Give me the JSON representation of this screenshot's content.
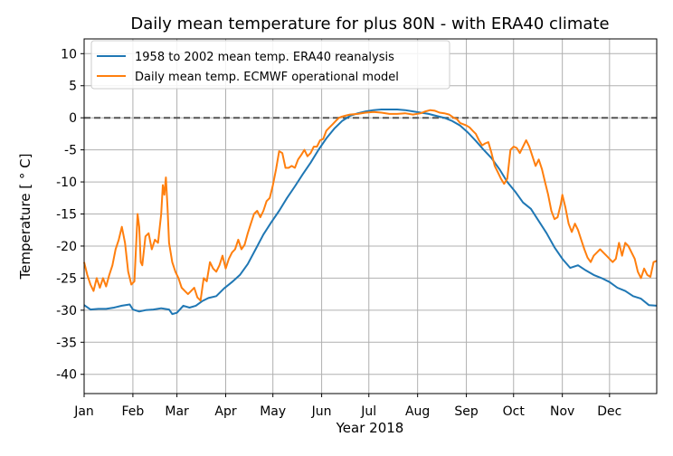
{
  "chart_data": {
    "type": "line",
    "title": "Daily mean temperature for plus 80N - with ERA40 climate",
    "xlabel": "Year 2018",
    "ylabel": "Temperature [ ° C]",
    "ylim": [
      -43,
      12.3
    ],
    "xlim": [
      1,
      365
    ],
    "x_unit": "day of year 2018",
    "yticks": [
      10,
      5,
      0,
      -5,
      -10,
      -15,
      -20,
      -25,
      -30,
      -35,
      -40
    ],
    "xticks": [
      {
        "label": "Jan",
        "day": 1
      },
      {
        "label": "Feb",
        "day": 32
      },
      {
        "label": "Mar",
        "day": 60
      },
      {
        "label": "Apr",
        "day": 91
      },
      {
        "label": "May",
        "day": 121
      },
      {
        "label": "Jun",
        "day": 152
      },
      {
        "label": "Jul",
        "day": 182
      },
      {
        "label": "Aug",
        "day": 213
      },
      {
        "label": "Sep",
        "day": 244
      },
      {
        "label": "Oct",
        "day": 274
      },
      {
        "label": "Nov",
        "day": 305
      },
      {
        "label": "Dec",
        "day": 335
      }
    ],
    "grid": true,
    "legend_position": "top-left",
    "zero_line": {
      "y": 0,
      "style": "dashed",
      "color": "#555555"
    },
    "series": [
      {
        "name": "1958 to 2002 mean temp. ERA40 reanalysis",
        "color": "#1f77b4",
        "points": [
          [
            1,
            -29.2
          ],
          [
            5,
            -29.9
          ],
          [
            10,
            -29.8
          ],
          [
            15,
            -29.8
          ],
          [
            20,
            -29.6
          ],
          [
            25,
            -29.3
          ],
          [
            30,
            -29.1
          ],
          [
            32,
            -29.9
          ],
          [
            36,
            -30.2
          ],
          [
            40,
            -30.0
          ],
          [
            45,
            -29.9
          ],
          [
            50,
            -29.7
          ],
          [
            55,
            -29.9
          ],
          [
            57,
            -30.6
          ],
          [
            60,
            -30.4
          ],
          [
            64,
            -29.3
          ],
          [
            68,
            -29.6
          ],
          [
            72,
            -29.3
          ],
          [
            76,
            -28.6
          ],
          [
            80,
            -28.1
          ],
          [
            85,
            -27.8
          ],
          [
            90,
            -26.6
          ],
          [
            95,
            -25.6
          ],
          [
            100,
            -24.5
          ],
          [
            105,
            -22.8
          ],
          [
            110,
            -20.5
          ],
          [
            115,
            -18.2
          ],
          [
            120,
            -16.3
          ],
          [
            125,
            -14.5
          ],
          [
            130,
            -12.5
          ],
          [
            135,
            -10.7
          ],
          [
            140,
            -8.8
          ],
          [
            145,
            -7.0
          ],
          [
            150,
            -5.0
          ],
          [
            155,
            -3.2
          ],
          [
            160,
            -1.7
          ],
          [
            165,
            -0.5
          ],
          [
            170,
            0.3
          ],
          [
            175,
            0.7
          ],
          [
            180,
            1.0
          ],
          [
            185,
            1.2
          ],
          [
            190,
            1.3
          ],
          [
            195,
            1.3
          ],
          [
            200,
            1.3
          ],
          [
            205,
            1.2
          ],
          [
            210,
            1.0
          ],
          [
            215,
            0.8
          ],
          [
            220,
            0.6
          ],
          [
            225,
            0.3
          ],
          [
            230,
            0.0
          ],
          [
            235,
            -0.5
          ],
          [
            240,
            -1.2
          ],
          [
            245,
            -2.3
          ],
          [
            250,
            -3.6
          ],
          [
            255,
            -5.0
          ],
          [
            260,
            -6.3
          ],
          [
            265,
            -8.0
          ],
          [
            270,
            -10.0
          ],
          [
            275,
            -11.5
          ],
          [
            280,
            -13.2
          ],
          [
            285,
            -14.2
          ],
          [
            290,
            -16.1
          ],
          [
            295,
            -18.0
          ],
          [
            300,
            -20.2
          ],
          [
            305,
            -22.0
          ],
          [
            310,
            -23.4
          ],
          [
            315,
            -23.0
          ],
          [
            320,
            -23.8
          ],
          [
            325,
            -24.5
          ],
          [
            330,
            -25.0
          ],
          [
            335,
            -25.6
          ],
          [
            340,
            -26.5
          ],
          [
            345,
            -27.0
          ],
          [
            350,
            -27.8
          ],
          [
            355,
            -28.2
          ],
          [
            360,
            -29.2
          ],
          [
            365,
            -29.3
          ]
        ]
      },
      {
        "name": "Daily mean temp. ECMWF operational model",
        "color": "#ff7f0e",
        "points": [
          [
            1,
            -22.5
          ],
          [
            3,
            -24.5
          ],
          [
            5,
            -26.0
          ],
          [
            7,
            -27.0
          ],
          [
            9,
            -25.0
          ],
          [
            11,
            -26.5
          ],
          [
            13,
            -25.0
          ],
          [
            15,
            -26.3
          ],
          [
            17,
            -24.5
          ],
          [
            19,
            -23.0
          ],
          [
            21,
            -20.5
          ],
          [
            23,
            -19.0
          ],
          [
            25,
            -17.0
          ],
          [
            27,
            -19.5
          ],
          [
            29,
            -24.0
          ],
          [
            31,
            -26.0
          ],
          [
            33,
            -25.5
          ],
          [
            35,
            -15.0
          ],
          [
            36,
            -17.0
          ],
          [
            37,
            -22.5
          ],
          [
            38,
            -23.0
          ],
          [
            40,
            -18.5
          ],
          [
            42,
            -18.0
          ],
          [
            44,
            -20.5
          ],
          [
            46,
            -19.0
          ],
          [
            48,
            -19.5
          ],
          [
            50,
            -15.0
          ],
          [
            51,
            -10.5
          ],
          [
            52,
            -12.0
          ],
          [
            53,
            -9.3
          ],
          [
            54,
            -14.0
          ],
          [
            55,
            -19.5
          ],
          [
            57,
            -22.5
          ],
          [
            59,
            -24.0
          ],
          [
            61,
            -25.0
          ],
          [
            63,
            -26.5
          ],
          [
            65,
            -27.0
          ],
          [
            67,
            -27.5
          ],
          [
            69,
            -27.0
          ],
          [
            71,
            -26.5
          ],
          [
            73,
            -28.0
          ],
          [
            75,
            -28.5
          ],
          [
            77,
            -25.0
          ],
          [
            79,
            -25.5
          ],
          [
            81,
            -22.5
          ],
          [
            83,
            -23.5
          ],
          [
            85,
            -24.0
          ],
          [
            87,
            -23.0
          ],
          [
            89,
            -21.5
          ],
          [
            91,
            -23.5
          ],
          [
            93,
            -22.0
          ],
          [
            95,
            -21.0
          ],
          [
            97,
            -20.5
          ],
          [
            99,
            -19.0
          ],
          [
            101,
            -20.5
          ],
          [
            103,
            -19.8
          ],
          [
            105,
            -18.0
          ],
          [
            107,
            -16.5
          ],
          [
            109,
            -15.0
          ],
          [
            111,
            -14.5
          ],
          [
            113,
            -15.5
          ],
          [
            115,
            -14.5
          ],
          [
            117,
            -13.0
          ],
          [
            119,
            -12.5
          ],
          [
            121,
            -10.5
          ],
          [
            123,
            -8.0
          ],
          [
            125,
            -5.2
          ],
          [
            127,
            -5.5
          ],
          [
            129,
            -7.8
          ],
          [
            131,
            -7.8
          ],
          [
            133,
            -7.5
          ],
          [
            135,
            -7.8
          ],
          [
            137,
            -6.5
          ],
          [
            139,
            -5.8
          ],
          [
            141,
            -5.0
          ],
          [
            143,
            -6.0
          ],
          [
            145,
            -5.5
          ],
          [
            147,
            -4.5
          ],
          [
            149,
            -4.5
          ],
          [
            151,
            -3.5
          ],
          [
            153,
            -3.3
          ],
          [
            155,
            -2.0
          ],
          [
            157,
            -1.5
          ],
          [
            159,
            -1.0
          ],
          [
            161,
            -0.5
          ],
          [
            163,
            0.0
          ],
          [
            165,
            0.2
          ],
          [
            170,
            0.5
          ],
          [
            175,
            0.6
          ],
          [
            180,
            0.8
          ],
          [
            185,
            0.9
          ],
          [
            190,
            0.8
          ],
          [
            195,
            0.6
          ],
          [
            200,
            0.6
          ],
          [
            205,
            0.7
          ],
          [
            210,
            0.5
          ],
          [
            215,
            0.7
          ],
          [
            218,
            1.0
          ],
          [
            221,
            1.2
          ],
          [
            224,
            1.1
          ],
          [
            227,
            0.8
          ],
          [
            230,
            0.7
          ],
          [
            233,
            0.5
          ],
          [
            236,
            0.0
          ],
          [
            238,
            -0.2
          ],
          [
            240,
            -0.8
          ],
          [
            242,
            -1.0
          ],
          [
            244,
            -1.2
          ],
          [
            246,
            -1.5
          ],
          [
            248,
            -2.0
          ],
          [
            250,
            -2.5
          ],
          [
            252,
            -3.5
          ],
          [
            254,
            -4.3
          ],
          [
            256,
            -4.0
          ],
          [
            258,
            -3.8
          ],
          [
            260,
            -5.5
          ],
          [
            262,
            -7.5
          ],
          [
            264,
            -8.5
          ],
          [
            266,
            -9.5
          ],
          [
            268,
            -10.3
          ],
          [
            270,
            -9.5
          ],
          [
            272,
            -5.0
          ],
          [
            274,
            -4.5
          ],
          [
            276,
            -4.7
          ],
          [
            278,
            -5.5
          ],
          [
            280,
            -4.5
          ],
          [
            282,
            -3.5
          ],
          [
            284,
            -4.5
          ],
          [
            286,
            -6.0
          ],
          [
            288,
            -7.5
          ],
          [
            290,
            -6.5
          ],
          [
            292,
            -8.0
          ],
          [
            294,
            -10.0
          ],
          [
            296,
            -12.0
          ],
          [
            298,
            -14.5
          ],
          [
            300,
            -15.8
          ],
          [
            302,
            -15.5
          ],
          [
            304,
            -13.5
          ],
          [
            305,
            -12.0
          ],
          [
            307,
            -14.0
          ],
          [
            309,
            -16.5
          ],
          [
            311,
            -17.8
          ],
          [
            313,
            -16.5
          ],
          [
            315,
            -17.5
          ],
          [
            317,
            -19.0
          ],
          [
            319,
            -20.5
          ],
          [
            321,
            -21.8
          ],
          [
            323,
            -22.5
          ],
          [
            325,
            -21.5
          ],
          [
            327,
            -21.0
          ],
          [
            329,
            -20.5
          ],
          [
            331,
            -21.0
          ],
          [
            333,
            -21.5
          ],
          [
            335,
            -22.0
          ],
          [
            337,
            -22.5
          ],
          [
            339,
            -22.0
          ],
          [
            341,
            -19.5
          ],
          [
            343,
            -21.5
          ],
          [
            345,
            -19.5
          ],
          [
            347,
            -20.0
          ],
          [
            349,
            -21.0
          ],
          [
            351,
            -22.0
          ],
          [
            353,
            -24.0
          ],
          [
            355,
            -25.0
          ],
          [
            357,
            -23.5
          ],
          [
            359,
            -24.5
          ],
          [
            361,
            -24.8
          ],
          [
            363,
            -22.5
          ],
          [
            365,
            -22.3
          ]
        ]
      }
    ]
  }
}
